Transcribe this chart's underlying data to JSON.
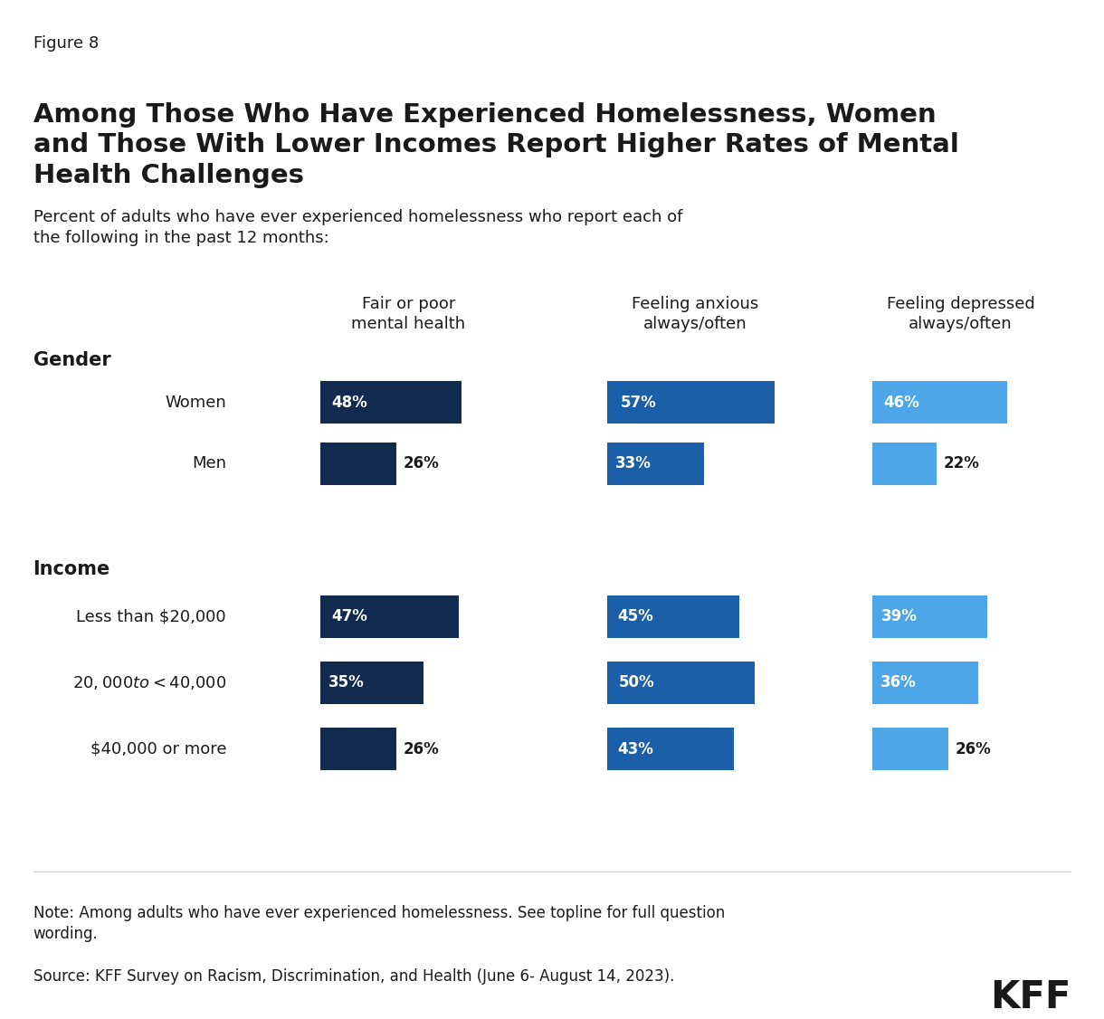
{
  "figure_label": "Figure 8",
  "title": "Among Those Who Have Experienced Homelessness, Women\nand Those With Lower Incomes Report Higher Rates of Mental\nHealth Challenges",
  "subtitle": "Percent of adults who have ever experienced homelessness who report each of\nthe following in the past 12 months:",
  "col_headers": [
    "Fair or poor\nmental health",
    "Feeling anxious\nalways/often",
    "Feeling depressed\nalways/often"
  ],
  "section_labels": [
    "Gender",
    "Income"
  ],
  "row_labels": [
    "Women",
    "Men",
    "Less than $20,000",
    "$20,000 to <$40,000",
    "$40,000 or more"
  ],
  "data": {
    "Women": [
      48,
      57,
      46
    ],
    "Men": [
      26,
      33,
      22
    ],
    "Less than $20,000": [
      47,
      45,
      39
    ],
    "$20,000 to <$40,000": [
      35,
      50,
      36
    ],
    "$40,000 or more": [
      26,
      43,
      26
    ]
  },
  "col_colors": [
    "#102b4e",
    "#1a5fa8",
    "#4da6e8"
  ],
  "note": "Note: Among adults who have ever experienced homelessness. See topline for full question\nwording.",
  "source": "Source: KFF Survey on Racism, Discrimination, and Health (June 6- August 14, 2023).",
  "bg_color": "#ffffff",
  "text_color": "#1a1a1a"
}
